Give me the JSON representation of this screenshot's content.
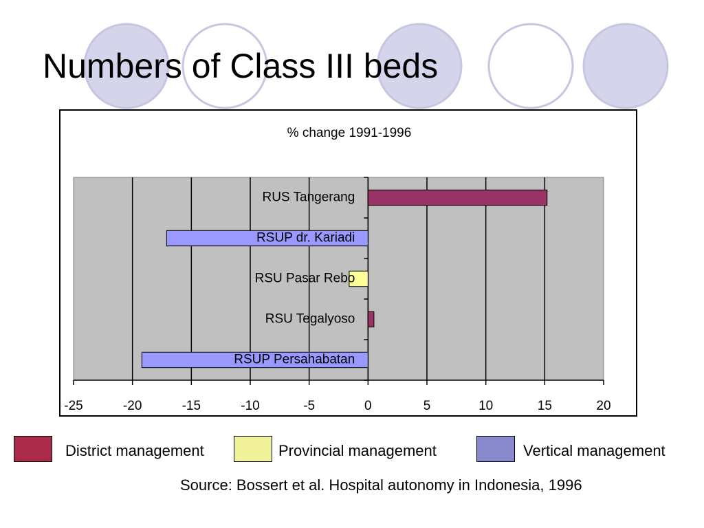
{
  "slide": {
    "title": "Numbers of Class III beds",
    "source": "Source: Bossert et al. Hospital autonomy in Indonesia, 1996"
  },
  "colors": {
    "circle_fill": "#d4d4ea",
    "circle_stroke": "#c6c6e2",
    "plot_bg": "#c0c0c0",
    "district": "#993366",
    "provincial": "#ffff99",
    "vertical": "#9999ff",
    "legend_vertical": "#8888cc",
    "legend_district": "#aa2a4a",
    "legend_provincial": "#f2f29a"
  },
  "legend": [
    {
      "label": "District management",
      "color_key": "legend_district"
    },
    {
      "label": "Provincial management",
      "color_key": "legend_provincial"
    },
    {
      "label": "Vertical management",
      "color_key": "legend_vertical"
    }
  ],
  "chart_data": {
    "type": "bar",
    "orientation": "horizontal",
    "title": "% change 1991-1996",
    "xlabel": "",
    "ylabel": "",
    "xlim": [
      -25,
      20
    ],
    "xticks": [
      -25,
      -20,
      -15,
      -10,
      -5,
      0,
      5,
      10,
      15,
      20
    ],
    "grid": true,
    "categories": [
      "RUS Tangerang",
      "RSUP dr. Kariadi",
      "RSU Pasar Rebo",
      "RSU Tegalyoso",
      "RSUP Persahabatan"
    ],
    "values": [
      15.2,
      -17.1,
      -1.6,
      0.5,
      -19.2
    ],
    "groups": [
      "District management",
      "Vertical management",
      "Provincial management",
      "District management",
      "Vertical management"
    ]
  }
}
